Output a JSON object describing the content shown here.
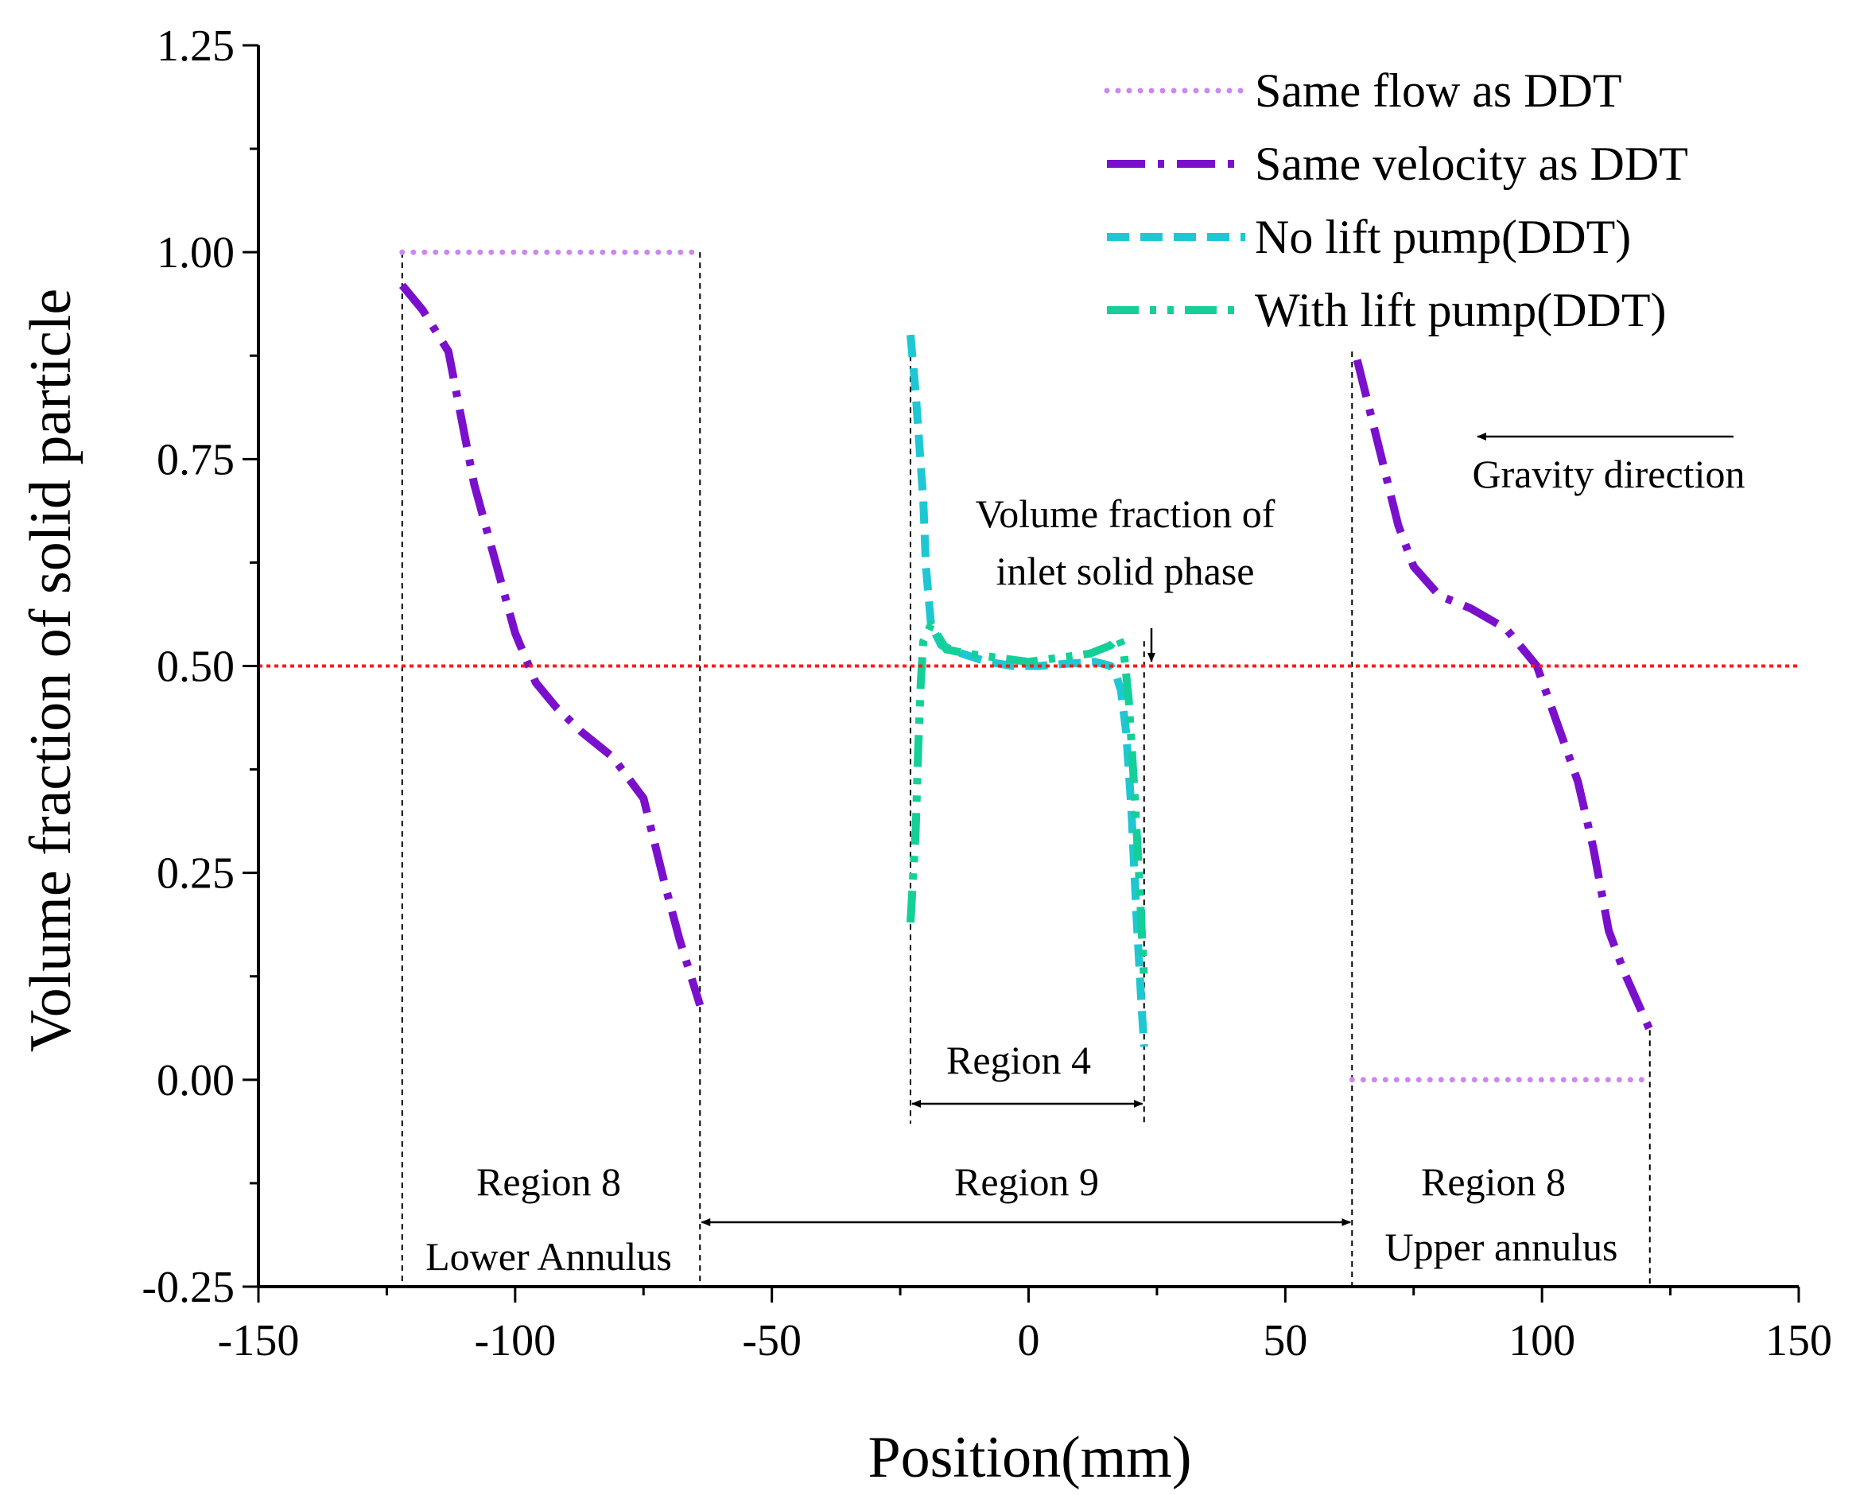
{
  "chart_data": {
    "type": "line",
    "title": "",
    "xlabel": "Position(mm)",
    "ylabel": "Volume fraction of solid particle",
    "xlim": [
      -150,
      150
    ],
    "ylim": [
      -0.25,
      1.25
    ],
    "x_ticks": [
      -150,
      -100,
      -50,
      0,
      50,
      100,
      150
    ],
    "x_tick_labels": [
      "-150",
      "-100",
      "-50",
      "0",
      "50",
      "100",
      "150"
    ],
    "y_ticks": [
      -0.25,
      0,
      0.25,
      0.5,
      0.75,
      1.0,
      1.25
    ],
    "y_tick_labels": [
      "-0.25",
      "0.00",
      "0.25",
      "0.50",
      "0.75",
      "1.00",
      "1.25"
    ],
    "grid": false,
    "legend_position": "top-right",
    "series": [
      {
        "name": "Same flow as DDT",
        "color": "#cc88ee",
        "style": "dot",
        "segments": [
          {
            "x": [
              -122,
              -64
            ],
            "y": [
              1.0,
              1.0
            ]
          },
          {
            "x": [
              63,
              121
            ],
            "y": [
              0.0,
              0.0
            ]
          }
        ]
      },
      {
        "name": "Same velocity as DDT",
        "color": "#7a10cc",
        "style": "dashdot",
        "segments": [
          {
            "x": [
              -122,
              -118,
              -113,
              -108,
              -100,
              -96,
              -92,
              -87,
              -81,
              -75,
              -71,
              -68,
              -64
            ],
            "y": [
              0.96,
              0.93,
              0.88,
              0.72,
              0.54,
              0.48,
              0.45,
              0.42,
              0.39,
              0.34,
              0.24,
              0.17,
              0.09
            ]
          },
          {
            "x": [
              64,
              68,
              72,
              75,
              80,
              86,
              93,
              99,
              103,
              107,
              110,
              113,
              116,
              121
            ],
            "y": [
              0.87,
              0.77,
              0.67,
              0.62,
              0.585,
              0.57,
              0.545,
              0.5,
              0.43,
              0.36,
              0.28,
              0.18,
              0.13,
              0.06
            ]
          }
        ]
      },
      {
        "name": "No lift pump(DDT)",
        "color": "#1ec8d2",
        "style": "dash",
        "segments": [
          {
            "x": [
              -23,
              -22,
              -20.5,
              -20,
              -19,
              -17,
              -13,
              -8,
              -3,
              2,
              8,
              13,
              16,
              17,
              18,
              19,
              20,
              21,
              22,
              22.5
            ],
            "y": [
              0.9,
              0.83,
              0.7,
              0.62,
              0.55,
              0.525,
              0.515,
              0.505,
              0.5,
              0.5,
              0.503,
              0.505,
              0.5,
              0.49,
              0.47,
              0.42,
              0.33,
              0.2,
              0.09,
              0.04
            ]
          }
        ]
      },
      {
        "name": "With lift pump(DDT)",
        "color": "#14cf98",
        "style": "dashdotdot",
        "segments": [
          {
            "x": [
              -23,
              -22,
              -21.5,
              -21,
              -20.5,
              -19,
              -16,
              -12,
              -6,
              0,
              6,
              12,
              16,
              17.5,
              18.5,
              19.5,
              20.5,
              21.5,
              22.5
            ],
            "y": [
              0.19,
              0.3,
              0.4,
              0.48,
              0.53,
              0.55,
              0.52,
              0.515,
              0.51,
              0.505,
              0.51,
              0.515,
              0.525,
              0.535,
              0.52,
              0.46,
              0.36,
              0.25,
              0.12
            ]
          }
        ]
      },
      {
        "name": "inlet-reference",
        "color": "#ff1a1a",
        "style": "dot",
        "legend": false,
        "segments": [
          {
            "x": [
              -150,
              150
            ],
            "y": [
              0.5,
              0.5
            ]
          }
        ]
      }
    ],
    "region_boundaries": {
      "x": [
        -122,
        -64,
        63,
        121
      ],
      "region4_x": [
        -23,
        22.5
      ],
      "y_top_at": [
        1.0,
        1.0,
        0.88,
        0.06
      ],
      "region4_y_top_at": [
        0.9,
        0.53
      ]
    },
    "annotations": {
      "inlet_line_1": "Volume fraction of",
      "inlet_line_2": "inlet solid phase",
      "gravity": "Gravity direction",
      "region4": "Region 4",
      "region9": "Region 9",
      "region8_left": "Region 8",
      "lower_annulus": "Lower Annulus",
      "region8_right": "Region 8",
      "upper_annulus": "Upper annulus"
    }
  }
}
